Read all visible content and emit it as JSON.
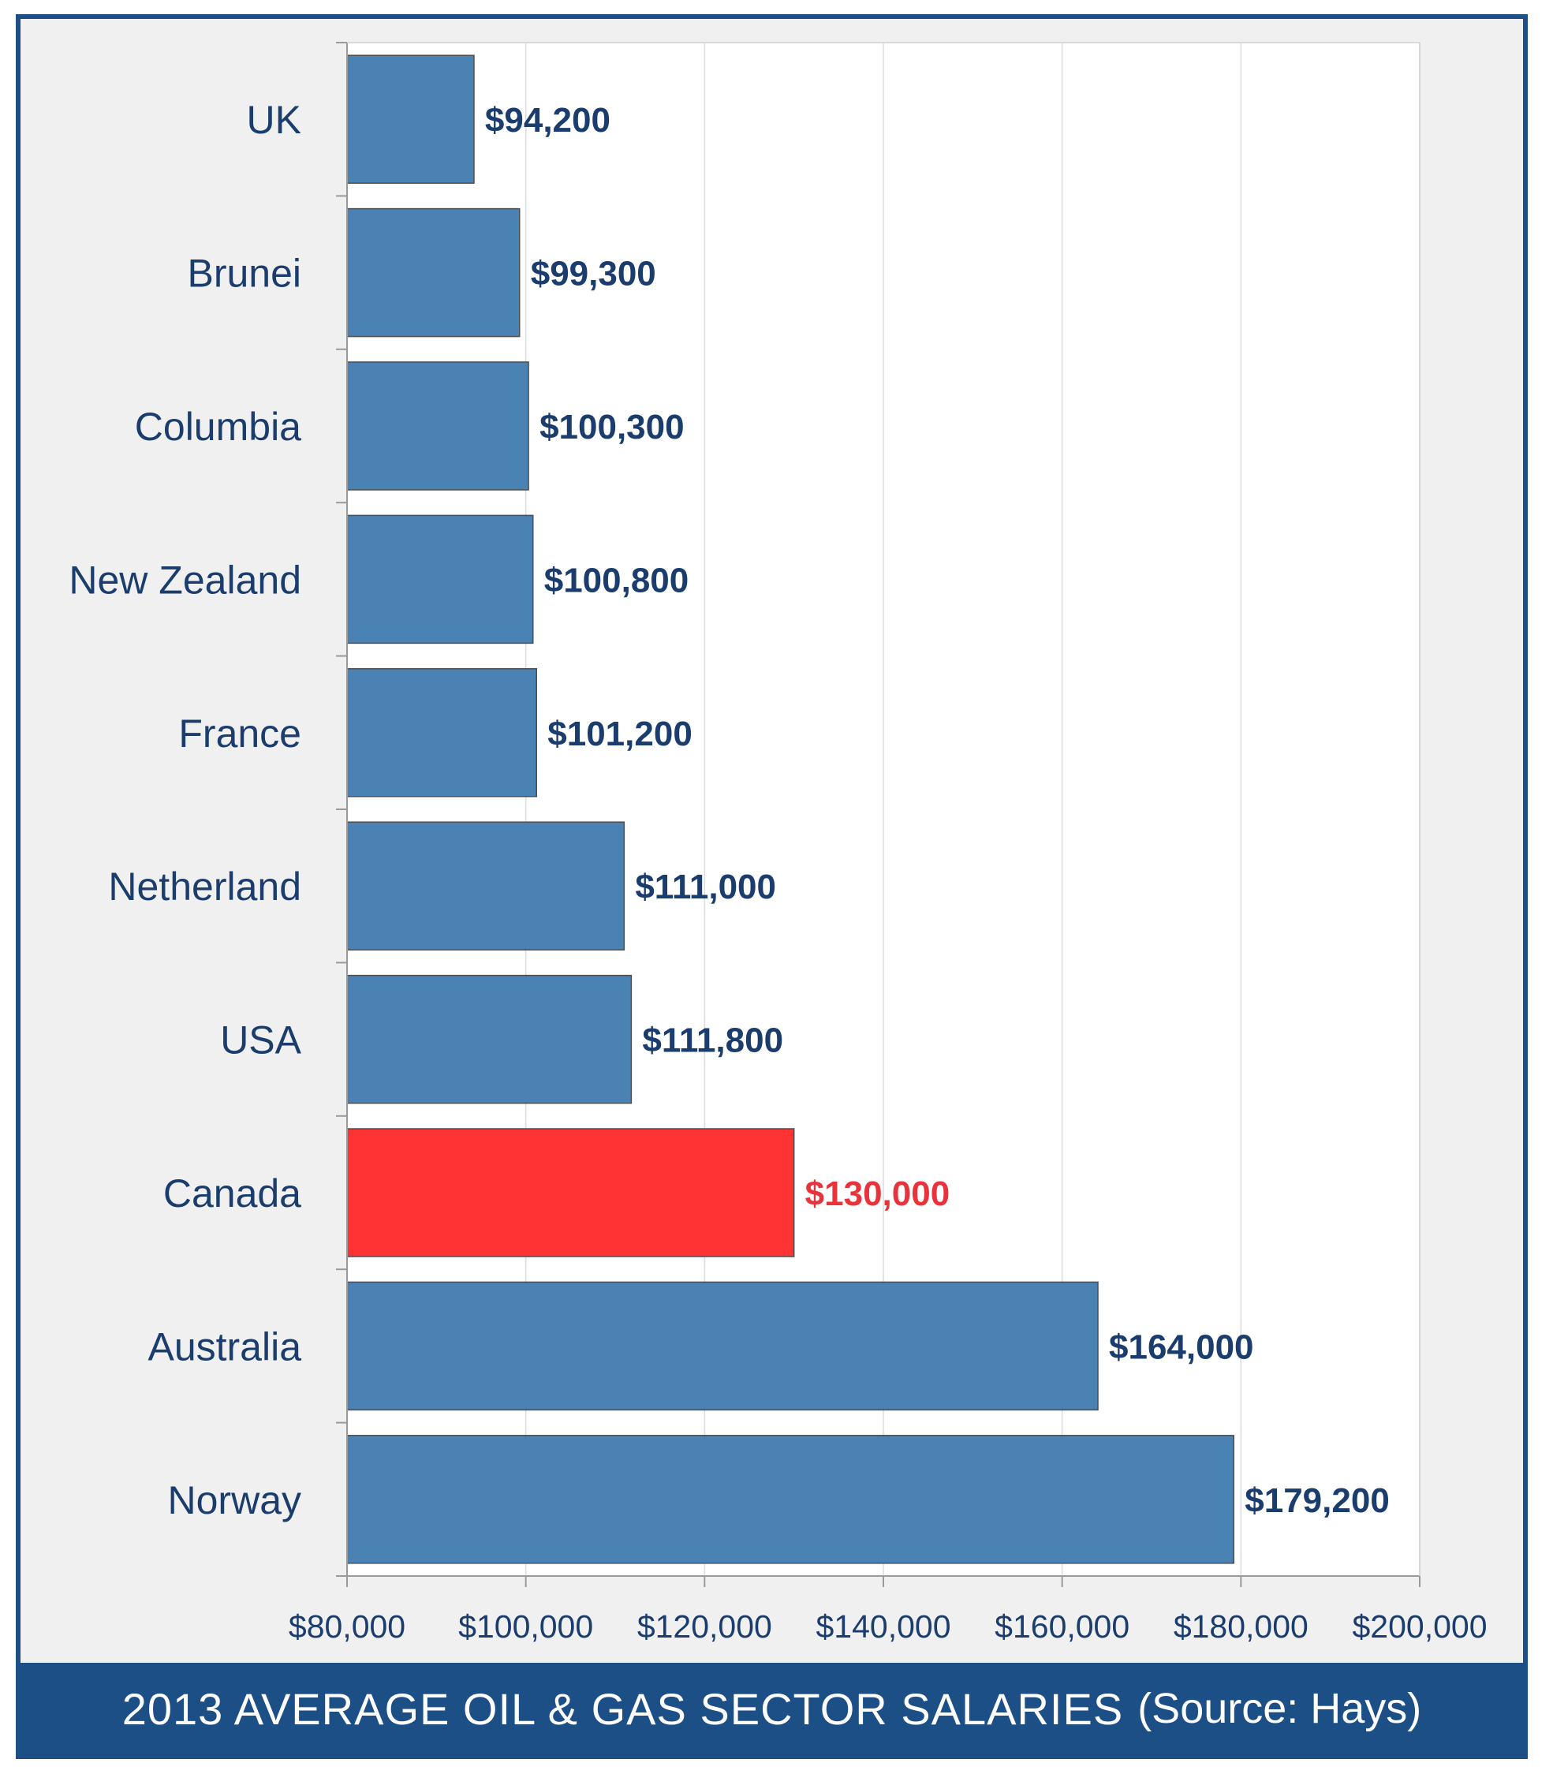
{
  "chart_data": {
    "type": "bar",
    "orientation": "horizontal",
    "title": "2013 AVERAGE OIL & GAS SECTOR SALARIES",
    "source": "(Source: Hays)",
    "categories": [
      "UK",
      "Brunei",
      "Columbia",
      "New Zealand",
      "France",
      "Netherland",
      "USA",
      "Canada",
      "Australia",
      "Norway"
    ],
    "values": [
      94200,
      99300,
      100300,
      100800,
      101200,
      111000,
      111800,
      130000,
      164000,
      179200
    ],
    "value_labels": [
      "$94,200",
      "$99,300",
      "$100,300",
      "$100,800",
      "$101,200",
      "$111,000",
      "$111,800",
      "$130,000",
      "$164,000",
      "$179,200"
    ],
    "highlight": [
      "Canada"
    ],
    "xlim": [
      80000,
      200000
    ],
    "xticks": [
      80000,
      100000,
      120000,
      140000,
      160000,
      180000,
      200000
    ],
    "xtick_labels": [
      "$80,000",
      "$100,000",
      "$120,000",
      "$140,000",
      "$160,000",
      "$180,000",
      "$200,000"
    ],
    "xlabel": "",
    "ylabel": "",
    "grid": true
  },
  "colors": {
    "bar": "#4a82b4",
    "highlight_bar": "#ff3333",
    "label": "#1b3d6e",
    "highlight_label": "#e8333b",
    "frame": "#1b4f85"
  }
}
